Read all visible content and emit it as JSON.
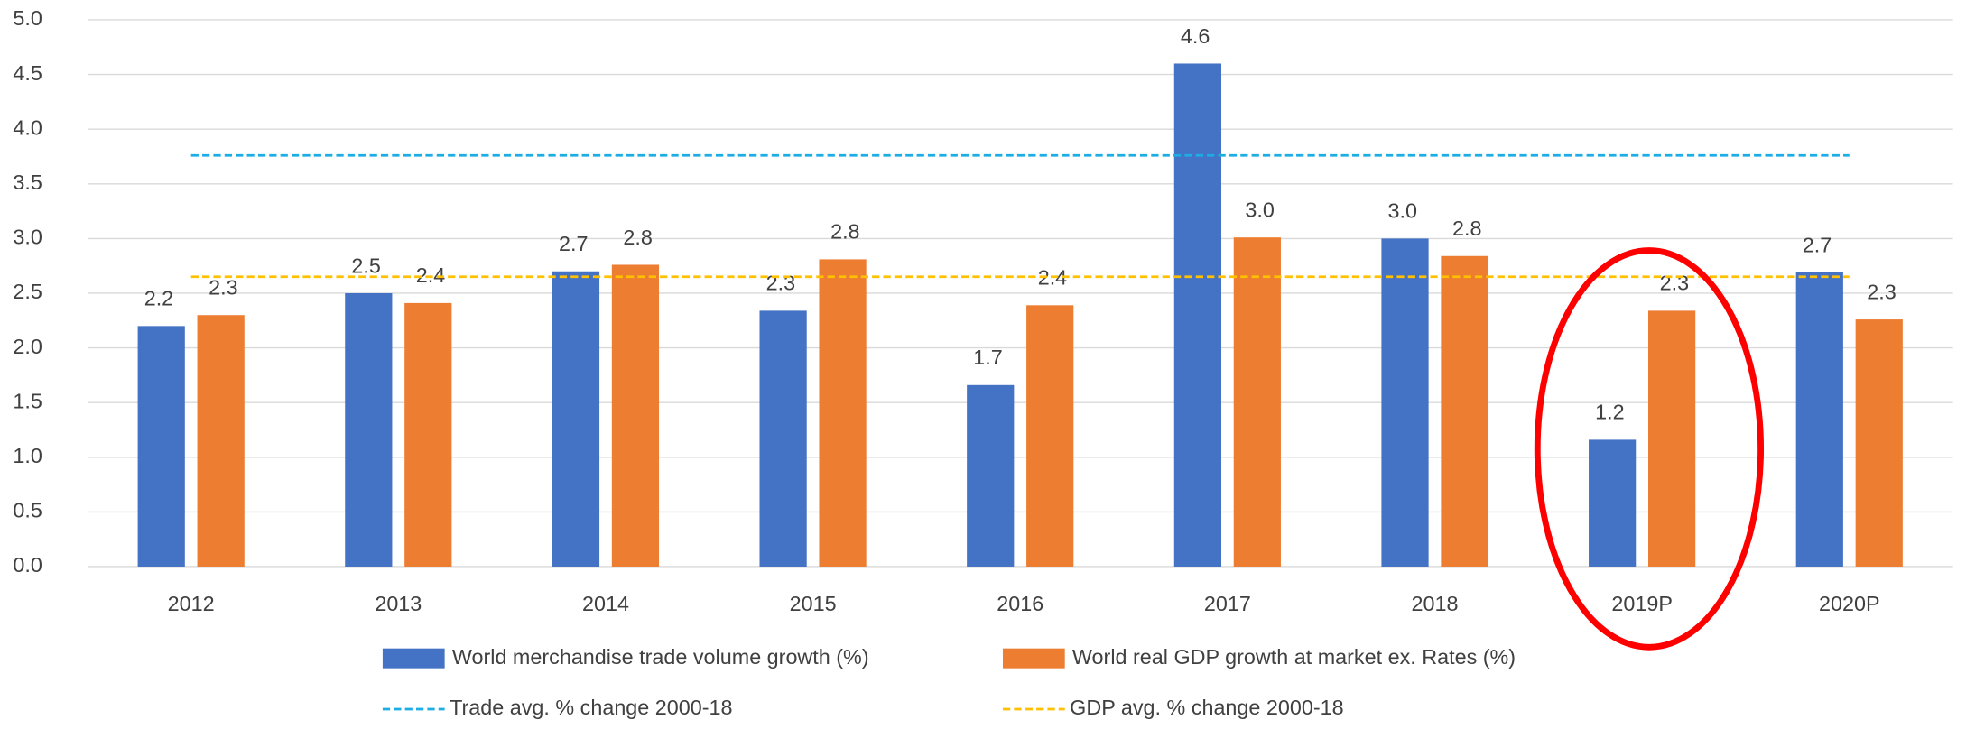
{
  "chart_data": {
    "type": "bar",
    "categories": [
      "2012",
      "2013",
      "2014",
      "2015",
      "2016",
      "2017",
      "2018",
      "2019P",
      "2020P"
    ],
    "series": [
      {
        "name": "World merchandise trade volume growth (%)",
        "color": "#4472c4",
        "values": [
          2.2,
          2.5,
          2.7,
          2.34,
          1.66,
          4.6,
          3.0,
          1.16,
          2.69
        ],
        "value_labels": [
          "2.2",
          "2.5",
          "2.7",
          "2.3",
          "1.7",
          "4.6",
          "3.0",
          "1.2",
          "2.7"
        ]
      },
      {
        "name": "World real GDP growth at market ex. Rates (%)",
        "color": "#ed7d31",
        "values": [
          2.3,
          2.41,
          2.76,
          2.81,
          2.39,
          3.01,
          2.84,
          2.34,
          2.26
        ],
        "value_labels": [
          "2.3",
          "2.4",
          "2.8",
          "2.8",
          "2.4",
          "3.0",
          "2.8",
          "2.3",
          "2.3"
        ]
      }
    ],
    "reference_lines": [
      {
        "name": "Trade avg. % change 2000-18",
        "color": "#1cade4",
        "value": 3.76
      },
      {
        "name": "GDP avg. % change 2000-18",
        "color": "#ffc000",
        "value": 2.65
      }
    ],
    "ylim": [
      0,
      5
    ],
    "yticks": [
      {
        "value": 0,
        "label": "0.0"
      },
      {
        "value": 0.5,
        "label": "0.5"
      },
      {
        "value": 1,
        "label": "1.0"
      },
      {
        "value": 1.5,
        "label": "1.5"
      },
      {
        "value": 2,
        "label": "2.0"
      },
      {
        "value": 2.5,
        "label": "2.5"
      },
      {
        "value": 3,
        "label": "3.0"
      },
      {
        "value": 3.5,
        "label": "3.5"
      },
      {
        "value": 4,
        "label": "4.0"
      },
      {
        "value": 4.5,
        "label": "4.5"
      },
      {
        "value": 5,
        "label": "5.0"
      }
    ],
    "grid": true
  }
}
